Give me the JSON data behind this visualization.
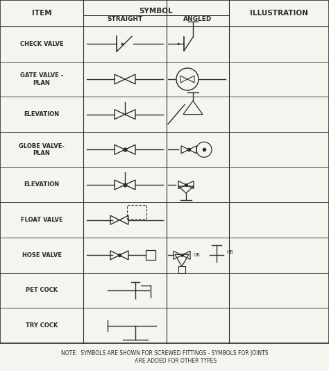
{
  "rows": [
    "CHECK VALVE",
    "GATE VALVE -\nPLAN",
    "ELEVATION",
    "GLOBE VALVE-\nPLAN",
    "ELEVATION",
    "FLOAT VALVE",
    "HOSE VALVE",
    "PET COCK",
    "TRY COCK"
  ],
  "note": "NOTE:  SYMBOLS ARE SHOWN FOR SCREWED FITTINGS - SYMBOLS FOR JOINTS\n              ARE ADDED FOR OTHER TYPES",
  "bg_color": "#f5f5f0",
  "line_color": "#2a2a2a",
  "text_color": "#2a2a2a",
  "font_size": 6.5,
  "header_font_size": 7.5
}
